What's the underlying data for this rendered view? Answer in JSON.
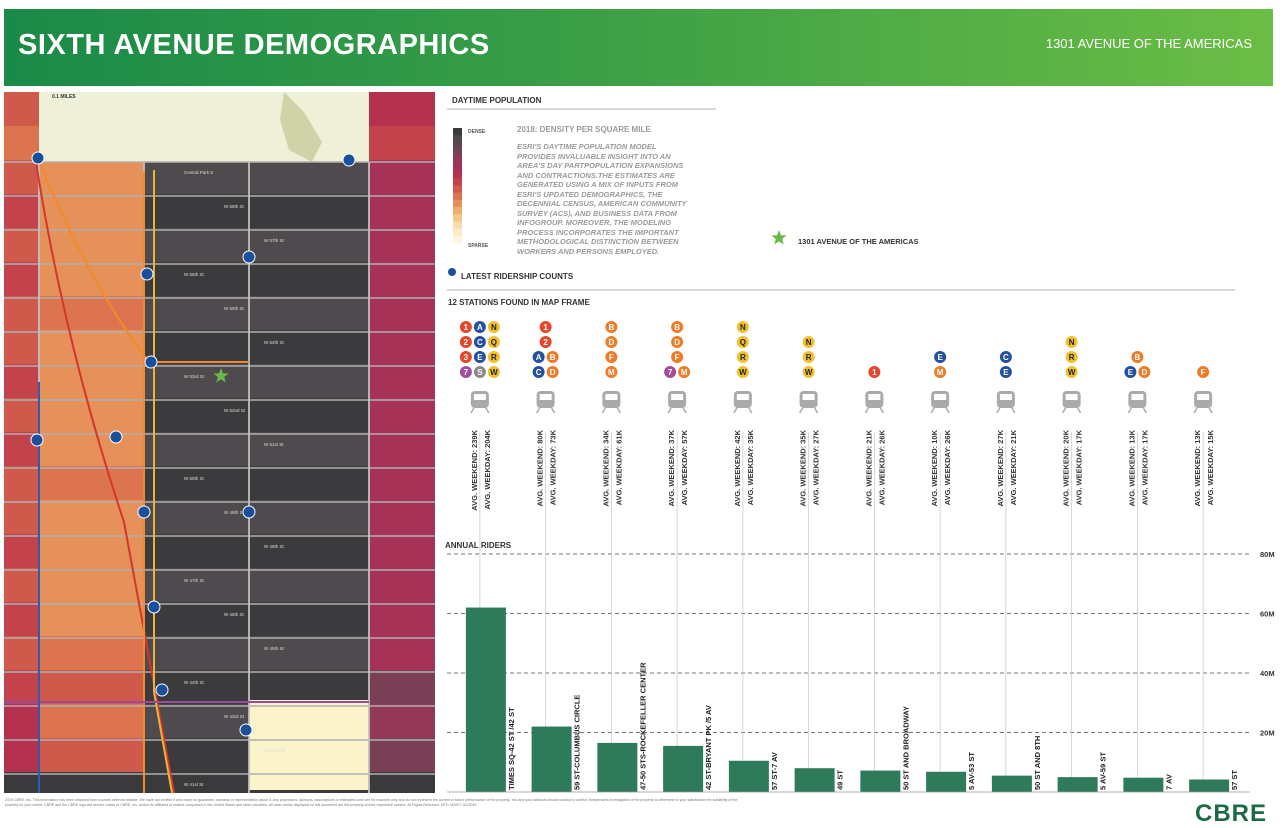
{
  "header": {
    "title": "SIXTH AVENUE DEMOGRAPHICS",
    "address": "1301 AVENUE OF THE AMERICAS"
  },
  "map": {
    "scale_label": "0.1 MILES",
    "streets": [
      "Central Park S",
      "W 58th St",
      "W 57th St",
      "W 56th St",
      "W 55th St",
      "W 54th St",
      "W 53rd St",
      "W 52nd St",
      "W 51st St",
      "W 50th St",
      "W 49th St",
      "W 48th St",
      "W 47th St",
      "W 46th St",
      "W 45th St",
      "W 44th St",
      "W 43rd St",
      "W 42nd St",
      "W 41st St",
      "W 40th St"
    ],
    "colors": {
      "dense": "#b5294e",
      "sparse": "#fbf3c9",
      "dark": "#3a3a3c",
      "park": "#eef0d8"
    }
  },
  "legend": {
    "section_title": "DAYTIME POPULATION",
    "title": "2018: DENSITY PER SQUARE MILE",
    "description": "ESRI'S DAYTIME POPULATION MODEL PROVIDES INVALUABLE INSIGHT INTO AN AREA'S DAY PARTPOPULATION EXPANSIONS AND CONTRACTIONS.THE ESTIMATES ARE GENERATED USING A MIX OF INPUTS FROM ESRI'S UPDATED DEMOGRAPHICS, THE DECENNIAL CENSUS, AMERICAN COMMUNITY SURVEY (ACS), AND BUSINESS DATA FROM INFOGROUP. MOREOVER, THE MODELING PROCESS INCORPORATES THE IMPORTANT METHODOLOGICAL DISTINCTION BETWEEN WORKERS AND PERSONS EMPLOYED.",
    "dense_label": "DENSE",
    "sparse_label": "SPARSE",
    "ramp": [
      "#3b3b3d",
      "#4e4a4d",
      "#614650",
      "#7a3f55",
      "#933857",
      "#a63357",
      "#b5324f",
      "#c2434c",
      "#cf5a4c",
      "#dc754f",
      "#e69159",
      "#efae6b",
      "#f5c88a",
      "#f9ddaa",
      "#fbecc6",
      "#fdf6e0"
    ],
    "star_label": "1301 AVENUE OF THE AMERICAS",
    "star_color": "#6ab845"
  },
  "ridership": {
    "title": "LATEST RIDERSHIP COUNTS",
    "found": "12 STATIONS FOUND IN MAP FRAME",
    "line_colors": {
      "1": "#e4472b",
      "2": "#e4472b",
      "3": "#e4472b",
      "A": "#2350a0",
      "C": "#2350a0",
      "E": "#2350a0",
      "N": "#f2c12a",
      "Q": "#f2c12a",
      "R": "#f2c12a",
      "W": "#f2c12a",
      "B": "#f07a25",
      "D": "#f07a25",
      "F": "#f07a25",
      "M": "#f07a25",
      "7": "#a54d9c",
      "S": "#8a8a8a"
    },
    "stations": [
      {
        "badges": [
          [
            "1",
            "A",
            "N"
          ],
          [
            "2",
            "C",
            "Q"
          ],
          [
            "3",
            "E",
            "R"
          ],
          [
            "7",
            "S",
            "W"
          ]
        ],
        "weekend": "AVG. WEEKEND: 239K",
        "weekday": "AVG. WEEKDAY: 204K"
      },
      {
        "badges": [
          [
            "1"
          ],
          [
            "2"
          ],
          [
            "A",
            "B"
          ],
          [
            "C",
            "D"
          ]
        ],
        "weekend": "AVG. WEEKEND: 80K",
        "weekday": "AVG. WEEKDAY: 73K"
      },
      {
        "badges": [
          [
            "B"
          ],
          [
            "D"
          ],
          [
            "F"
          ],
          [
            "M"
          ]
        ],
        "weekend": "AVG. WEEKEND: 34K",
        "weekday": "AVG. WEEKDAY: 61K"
      },
      {
        "badges": [
          [
            "B"
          ],
          [
            "D"
          ],
          [
            "F"
          ],
          [
            "7",
            "M"
          ]
        ],
        "weekend": "AVG. WEEKEND: 37K",
        "weekday": "AVG. WEEKDAY: 57K"
      },
      {
        "badges": [
          [
            "N"
          ],
          [
            "Q"
          ],
          [
            "R"
          ],
          [
            "W"
          ]
        ],
        "weekend": "AVG. WEEKEND: 42K",
        "weekday": "AVG. WEEKDAY: 35K"
      },
      {
        "badges": [
          [
            "N"
          ],
          [
            "R"
          ],
          [
            "W"
          ]
        ],
        "weekend": "AVG. WEEKEND: 35K",
        "weekday": "AVG. WEEKDAY: 27K"
      },
      {
        "badges": [
          [
            "1"
          ]
        ],
        "weekend": "AVG. WEEKEND: 21K",
        "weekday": "AVG. WEEKDAY: 26K"
      },
      {
        "badges": [
          [
            "E"
          ],
          [
            "M"
          ]
        ],
        "weekend": "AVG. WEEKEND: 10K",
        "weekday": "AVG. WEEKDAY: 26K"
      },
      {
        "badges": [
          [
            "C"
          ],
          [
            "E"
          ]
        ],
        "weekend": "AVG. WEEKEND: 27K",
        "weekday": "AVG. WEEKDAY: 21K"
      },
      {
        "badges": [
          [
            "N"
          ],
          [
            "R"
          ],
          [
            "W"
          ]
        ],
        "weekend": "AVG. WEEKEND: 20K",
        "weekday": "AVG. WEEKDAY: 17K"
      },
      {
        "badges": [
          [
            "B"
          ],
          [
            "E",
            "D"
          ]
        ],
        "weekend": "AVG. WEEKEND: 13K",
        "weekday": "AVG. WEEKDAY: 17K"
      },
      {
        "badges": [
          [
            "F"
          ]
        ],
        "weekend": "AVG. WEEKEND: 13K",
        "weekday": "AVG. WEEKDAY: 15K"
      }
    ]
  },
  "chart_data": {
    "type": "bar",
    "title": "ANNUAL RIDERS",
    "categories": [
      "TIMES SQ-42 ST /42 ST",
      "59 ST-COLUMBUS CIRCLE",
      "47-50 STS-ROCKEFELLER CENTER",
      "42 ST-BRYANT PK /5 AV",
      "57 ST-7 AV",
      "49 ST",
      "50 ST AND BROADWAY",
      "5 AV-53 ST",
      "50 ST AND 8TH",
      "5 AV-59 ST",
      "7 AV",
      "57 ST"
    ],
    "values": [
      62,
      22,
      16.5,
      15.5,
      10.5,
      8,
      7.2,
      6.8,
      5.5,
      5,
      4.8,
      4.2
    ],
    "ylim": [
      0,
      80
    ],
    "yticks": [
      20,
      40,
      60,
      80
    ],
    "ytick_labels": [
      "20M",
      "40M",
      "60M",
      "80M"
    ],
    "grid": true,
    "bar_color": "#2f7a5a"
  },
  "footer": {
    "disclaimer": "2019 CBRE, Inc. This information has been obtained from sources believed reliable. We have not verified it and make no guarantee, warranty or representation about it. Any projections, opinions, assumptions or estimates used are for example only and do not represent the current or future performance of the property. You and your advisors should conduct a careful, independent investigation of the property to determine to your satisfaction the suitability of the property for your needs. CBRE and the CBRE logo are service marks of CBRE, Inc. and/or its affiliated or related companies in the United States and other countries. All other marks displayed on this document are the property of their respective owners. All Rights Reserved. MTD 263977 4/2/2019",
    "logo": "CBRE"
  }
}
